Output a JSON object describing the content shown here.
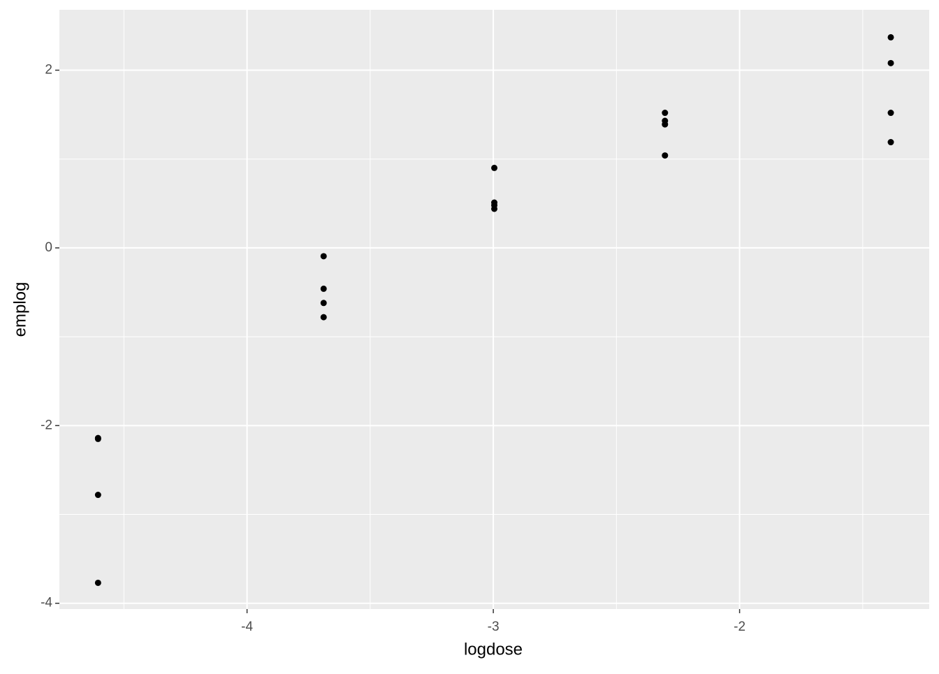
{
  "chart_data": {
    "type": "scatter",
    "x_label": "logdose",
    "y_label": "emplog",
    "xlim": [
      -4.762,
      -1.23
    ],
    "ylim": [
      -4.065,
      2.68
    ],
    "xticks": [
      -4,
      -3,
      -2
    ],
    "yticks": [
      -4,
      -2,
      0,
      2
    ],
    "xminor": [
      -4.5,
      -3.5,
      -2.5,
      -1.5
    ],
    "yminor": [
      -3,
      -1,
      1
    ],
    "grid": true,
    "color": "#000000",
    "series": [
      {
        "x": [
          -4.605,
          -4.605,
          -4.605,
          -4.605,
          -3.689,
          -3.689,
          -3.689,
          -3.689,
          -2.996,
          -2.996,
          -2.996,
          -2.996,
          -2.303,
          -2.303,
          -2.303,
          -2.303,
          -1.386,
          -1.386,
          -1.386,
          -1.386
        ],
        "values": [
          -2.14,
          -2.15,
          -2.78,
          -3.77,
          -0.094,
          -0.46,
          -0.62,
          -0.78,
          0.9,
          0.51,
          0.48,
          0.44,
          1.52,
          1.43,
          1.39,
          1.04,
          2.37,
          2.08,
          1.52,
          1.19
        ]
      }
    ]
  }
}
